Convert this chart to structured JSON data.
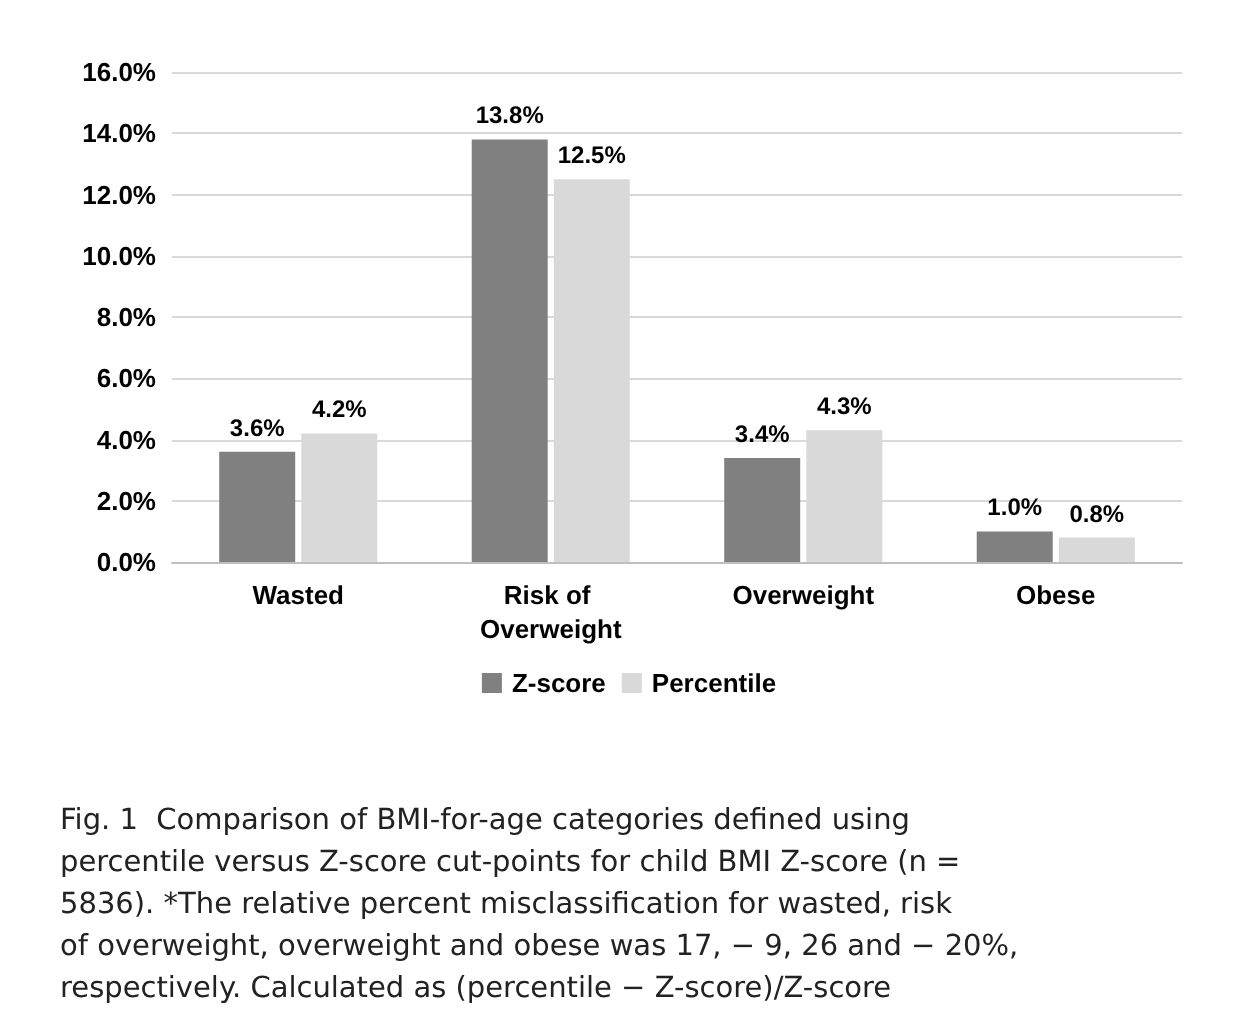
{
  "chart_data": {
    "type": "bar",
    "categories": [
      "Wasted",
      "Risk of Overweight",
      "Overweight",
      "Obese"
    ],
    "series": [
      {
        "name": "Z-score",
        "color": "#808080",
        "values": [
          3.6,
          13.8,
          3.4,
          1.0
        ],
        "value_labels": [
          "3.6%",
          "13.8%",
          "3.4%",
          "1.0%"
        ]
      },
      {
        "name": "Percentile",
        "color": "#d9d9d9",
        "values": [
          4.2,
          12.5,
          4.3,
          0.8
        ],
        "value_labels": [
          "4.2%",
          "12.5%",
          "4.3%",
          "0.8%"
        ]
      }
    ],
    "ylim": [
      0,
      16
    ],
    "yticks": [
      {
        "value": 0,
        "label": "0.0%"
      },
      {
        "value": 2,
        "label": "2.0%"
      },
      {
        "value": 4,
        "label": "4.0%"
      },
      {
        "value": 6,
        "label": "6.0%"
      },
      {
        "value": 8,
        "label": "8.0%"
      },
      {
        "value": 10,
        "label": "10.0%"
      },
      {
        "value": 12,
        "label": "12.0%"
      },
      {
        "value": 14,
        "label": "14.0%"
      },
      {
        "value": 16,
        "label": "16.0%"
      }
    ],
    "grid": "y",
    "legend": "bottom",
    "annotations": [
      "Fig. 1  Comparison of BMI-for-age categories defined using percentile versus Z-score cut-points for child BMI Z-score (n = 5836). *The relative percent misclassification for wasted, risk of overweight, overweight and obese was 17, − 9, 26 and − 20%, respectively. Calculated as (percentile − Z-score)/Z-score"
    ]
  }
}
